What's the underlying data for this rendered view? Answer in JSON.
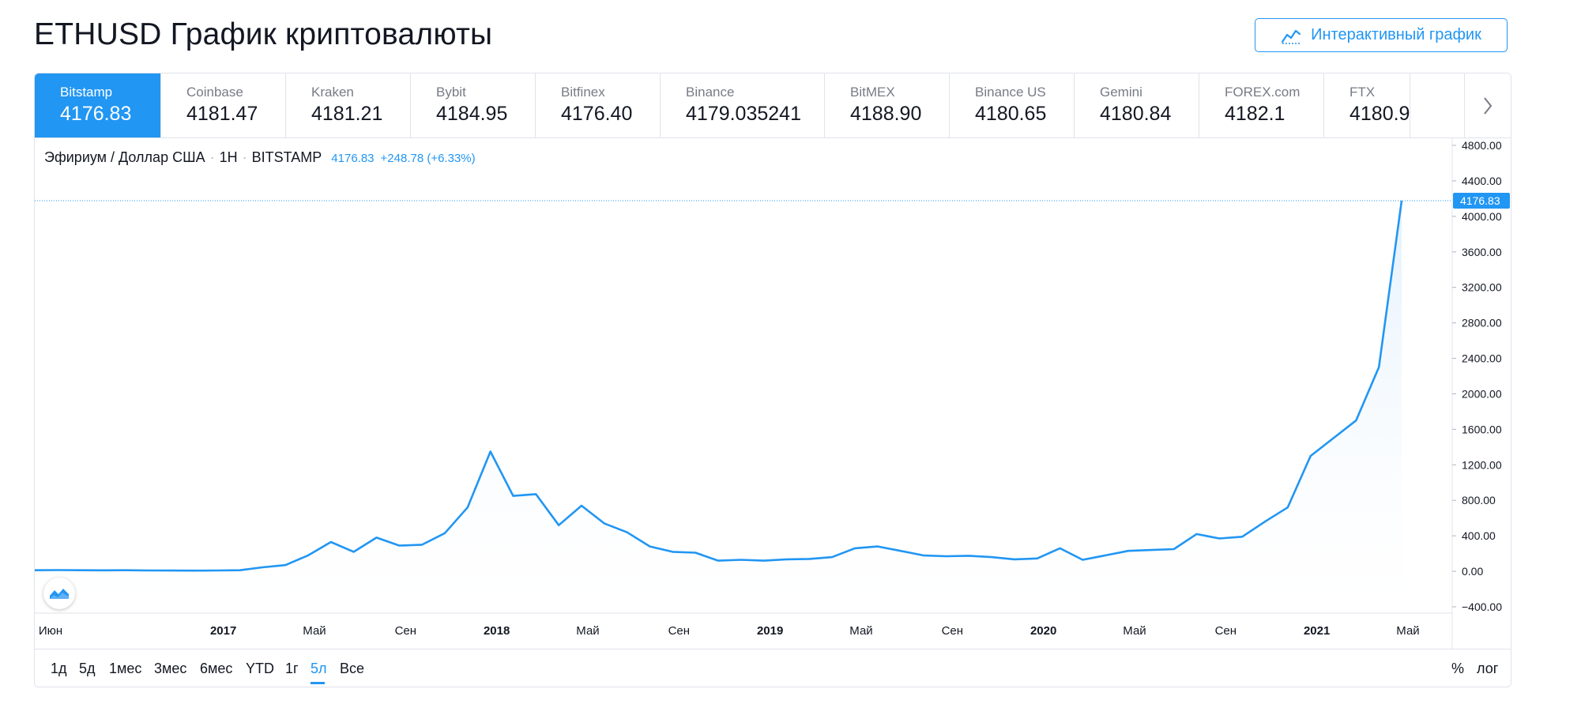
{
  "page": {
    "title": "ETHUSD График криптовалюты"
  },
  "header": {
    "interactive_button_label": "Интерактивный график",
    "interactive_icon": "chart-line-icon"
  },
  "exchange_tabs": [
    {
      "name": "Bitstamp",
      "price": "4176.83",
      "active": true
    },
    {
      "name": "Coinbase",
      "price": "4181.47"
    },
    {
      "name": "Kraken",
      "price": "4181.21"
    },
    {
      "name": "Bybit",
      "price": "4184.95"
    },
    {
      "name": "Bitfinex",
      "price": "4176.40"
    },
    {
      "name": "Binance",
      "price": "4179.035241"
    },
    {
      "name": "BitMEX",
      "price": "4188.90"
    },
    {
      "name": "Binance US",
      "price": "4180.65"
    },
    {
      "name": "Gemini",
      "price": "4180.84"
    },
    {
      "name": "FOREX.com",
      "price": "4182.1"
    },
    {
      "name": "FTX",
      "price": "4180.9"
    }
  ],
  "tabs_next_icon": "chevron-right-icon",
  "legend": {
    "symbol": "Эфириум / Доллар США",
    "interval": "1Н",
    "exchange": "BITSTAMP",
    "price": "4176.83",
    "change": "+248.78 (+6.33%)"
  },
  "ranges": [
    "1д",
    "5д",
    "1мес",
    "3мес",
    "6мес",
    "YTD",
    "1г",
    "5л",
    "Все"
  ],
  "active_range": "5л",
  "scale_options": [
    "%",
    "лог"
  ],
  "logo_icon": "tradingview-logo-icon",
  "colors": {
    "accent": "#2196f3",
    "line": "#2196f3",
    "fill": "#e3f0fd",
    "text": "#131722",
    "muted": "#787b86"
  },
  "chart_data": {
    "type": "area",
    "x_axis_labels": [
      "Июн",
      "2017",
      "Май",
      "Сен",
      "2018",
      "Май",
      "Сен",
      "2019",
      "Май",
      "Сен",
      "2020",
      "Май",
      "Сен",
      "2021",
      "Май"
    ],
    "x_axis_bold_labels": [
      "2017",
      "2018",
      "2019",
      "2020",
      "2021"
    ],
    "y_tick_labels": [
      "4800.00",
      "4400.00",
      "4000.00",
      "3600.00",
      "3200.00",
      "2800.00",
      "2400.00",
      "2000.00",
      "1600.00",
      "1200.00",
      "800.00",
      "400.00",
      "0.00",
      "−400.00"
    ],
    "ylim": [
      -400,
      4800
    ],
    "last_price_label": "4176.83",
    "x": [
      "2016-05",
      "2016-06",
      "2016-07",
      "2016-08",
      "2016-09",
      "2016-10",
      "2016-11",
      "2016-12",
      "2017-01",
      "2017-02",
      "2017-03",
      "2017-04",
      "2017-05",
      "2017-06",
      "2017-07",
      "2017-08",
      "2017-09",
      "2017-10",
      "2017-11",
      "2017-12",
      "2018-01",
      "2018-02",
      "2018-03",
      "2018-04",
      "2018-05",
      "2018-06",
      "2018-07",
      "2018-08",
      "2018-09",
      "2018-10",
      "2018-11",
      "2018-12",
      "2019-01",
      "2019-02",
      "2019-03",
      "2019-04",
      "2019-05",
      "2019-06",
      "2019-07",
      "2019-08",
      "2019-09",
      "2019-10",
      "2019-11",
      "2019-12",
      "2020-01",
      "2020-02",
      "2020-03",
      "2020-04",
      "2020-05",
      "2020-06",
      "2020-07",
      "2020-08",
      "2020-09",
      "2020-10",
      "2020-11",
      "2020-12",
      "2021-01",
      "2021-02",
      "2021-03",
      "2021-04",
      "2021-05"
    ],
    "values": [
      12,
      14,
      12,
      11,
      12,
      10,
      9,
      8,
      10,
      12,
      45,
      70,
      180,
      330,
      220,
      380,
      290,
      300,
      430,
      720,
      1350,
      850,
      870,
      520,
      740,
      540,
      440,
      280,
      220,
      210,
      120,
      130,
      120,
      135,
      140,
      160,
      260,
      280,
      230,
      180,
      170,
      175,
      160,
      135,
      145,
      260,
      130,
      180,
      230,
      240,
      250,
      420,
      370,
      390,
      560,
      720,
      1300,
      1500,
      1700,
      2300,
      4177
    ],
    "series": [
      {
        "values": "see values",
        "color": "#2196f3"
      }
    ]
  }
}
